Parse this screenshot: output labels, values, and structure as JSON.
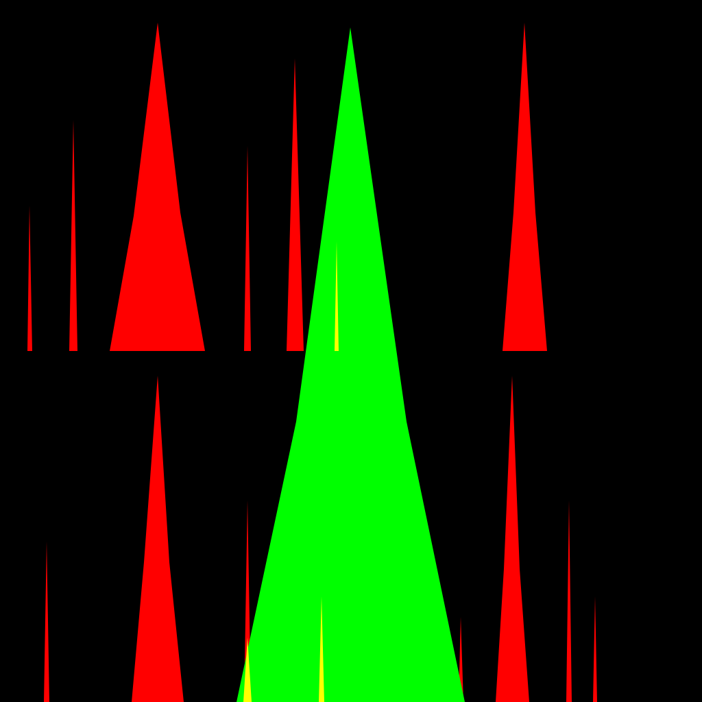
{
  "scene": {
    "background_color": "#000000",
    "colors": {
      "red": "#ff0000",
      "green": "#00ff00",
      "yellow": "#ffff00"
    },
    "spikes": [
      {
        "name": "spike-upper-1",
        "color": "red"
      },
      {
        "name": "spike-upper-2",
        "color": "red"
      },
      {
        "name": "spike-upper-3-large",
        "color": "red"
      },
      {
        "name": "spike-upper-4",
        "color": "red"
      },
      {
        "name": "spike-upper-5",
        "color": "red"
      },
      {
        "name": "spike-upper-6",
        "color": "red"
      },
      {
        "name": "spike-lower-1",
        "color": "red"
      },
      {
        "name": "spike-lower-2",
        "color": "red"
      },
      {
        "name": "spike-lower-3",
        "color": "red"
      },
      {
        "name": "spike-lower-4",
        "color": "red"
      },
      {
        "name": "spike-lower-5",
        "color": "red"
      },
      {
        "name": "spike-lower-6",
        "color": "red"
      },
      {
        "name": "spike-lower-7",
        "color": "red"
      },
      {
        "name": "spike-center-large",
        "color": "green"
      },
      {
        "name": "spike-yellow-1",
        "color": "yellow"
      },
      {
        "name": "spike-yellow-2",
        "color": "yellow"
      },
      {
        "name": "spike-yellow-3",
        "color": "yellow"
      }
    ]
  }
}
